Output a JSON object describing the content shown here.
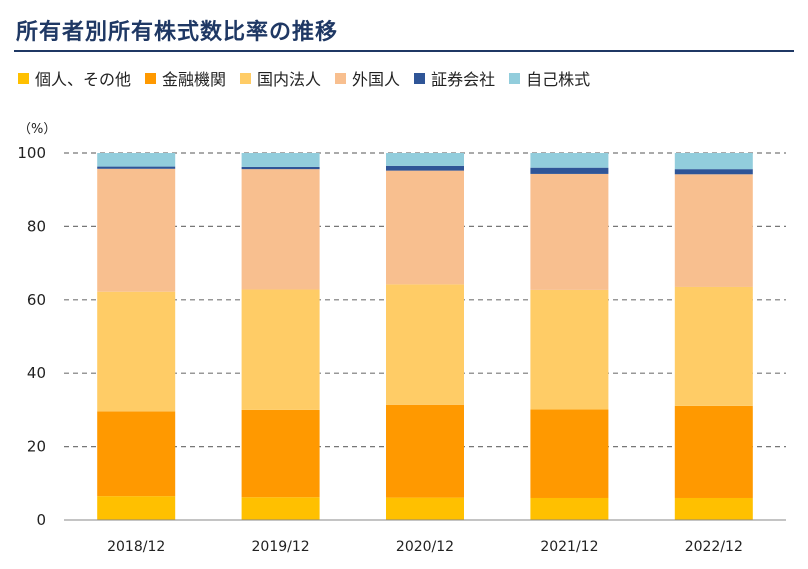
{
  "chart_data": {
    "type": "bar",
    "stacked": true,
    "title": "所有者別所有株式数比率の推移",
    "ylabel": "（%）",
    "ylim": [
      0,
      100
    ],
    "yticks": [
      0,
      20,
      40,
      60,
      80,
      100
    ],
    "grid": true,
    "legend_position": "top",
    "categories": [
      "2018/12",
      "2019/12",
      "2020/12",
      "2021/12",
      "2022/12"
    ],
    "series": [
      {
        "name": "個人、その他",
        "color": "#ffc000",
        "values": [
          6.5,
          6.2,
          6.1,
          6.0,
          6.0
        ]
      },
      {
        "name": "金融機関",
        "color": "#ff9900",
        "values": [
          23.1,
          23.8,
          25.3,
          24.1,
          25.1
        ]
      },
      {
        "name": "国内法人",
        "color": "#ffcc66",
        "values": [
          32.6,
          32.8,
          32.8,
          32.6,
          32.4
        ]
      },
      {
        "name": "外国人",
        "color": "#f8bf8f",
        "values": [
          33.5,
          32.8,
          31.0,
          31.6,
          30.7
        ]
      },
      {
        "name": "証券会社",
        "color": "#2f5597",
        "values": [
          0.6,
          0.6,
          1.3,
          1.7,
          1.4
        ]
      },
      {
        "name": "自己株式",
        "color": "#92cddc",
        "values": [
          3.7,
          3.8,
          3.5,
          4.0,
          4.4
        ]
      }
    ]
  }
}
